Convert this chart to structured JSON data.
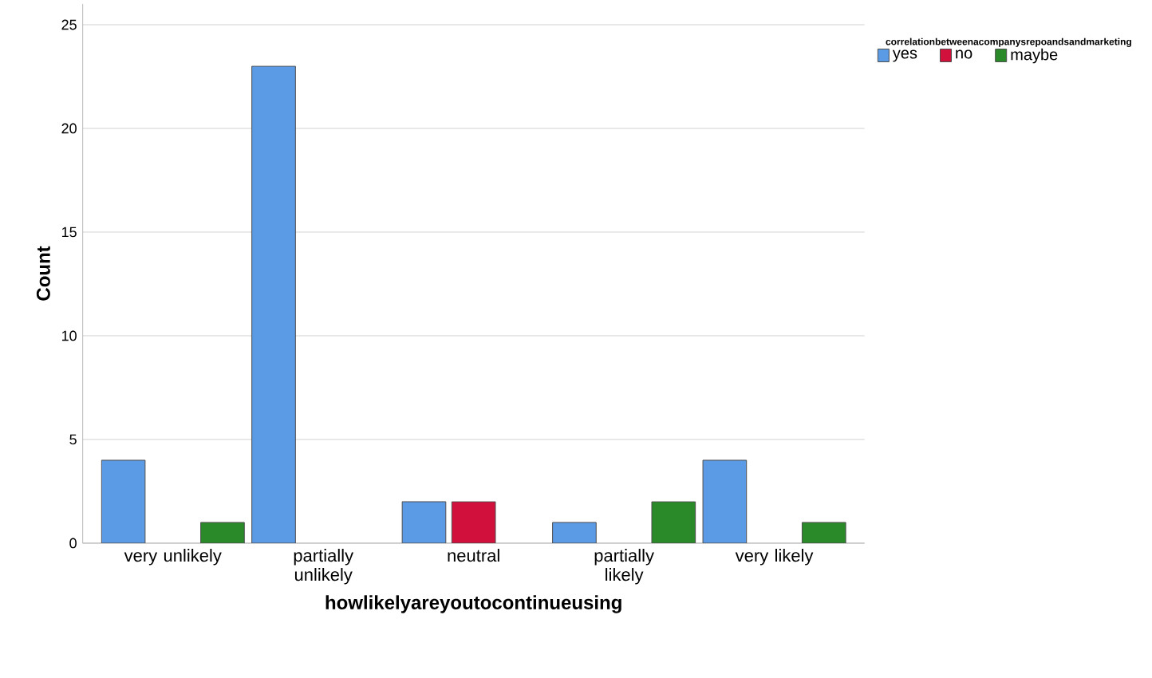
{
  "chart_data": {
    "type": "bar",
    "xlabel": "howlikelyareyoutocontinueusing",
    "ylabel": "Count",
    "legend_title": "correlationbetweenacompanysrepoandsandmarketing",
    "categories": [
      "very unlikely",
      "partially unlikely",
      "neutral",
      "partially likely",
      "very likely"
    ],
    "series": [
      {
        "name": "yes",
        "color": "#5b9be6",
        "values": [
          4,
          23,
          2,
          1,
          4
        ]
      },
      {
        "name": "no",
        "color": "#d1103c",
        "values": [
          null,
          null,
          2,
          null,
          null
        ]
      },
      {
        "name": "maybe",
        "color": "#2a8a2a",
        "values": [
          1,
          null,
          null,
          2,
          1
        ]
      }
    ],
    "ylim": [
      0,
      26
    ],
    "yticks": [
      0,
      5,
      10,
      15,
      20,
      25
    ],
    "grid": "y",
    "legend": "top right"
  }
}
